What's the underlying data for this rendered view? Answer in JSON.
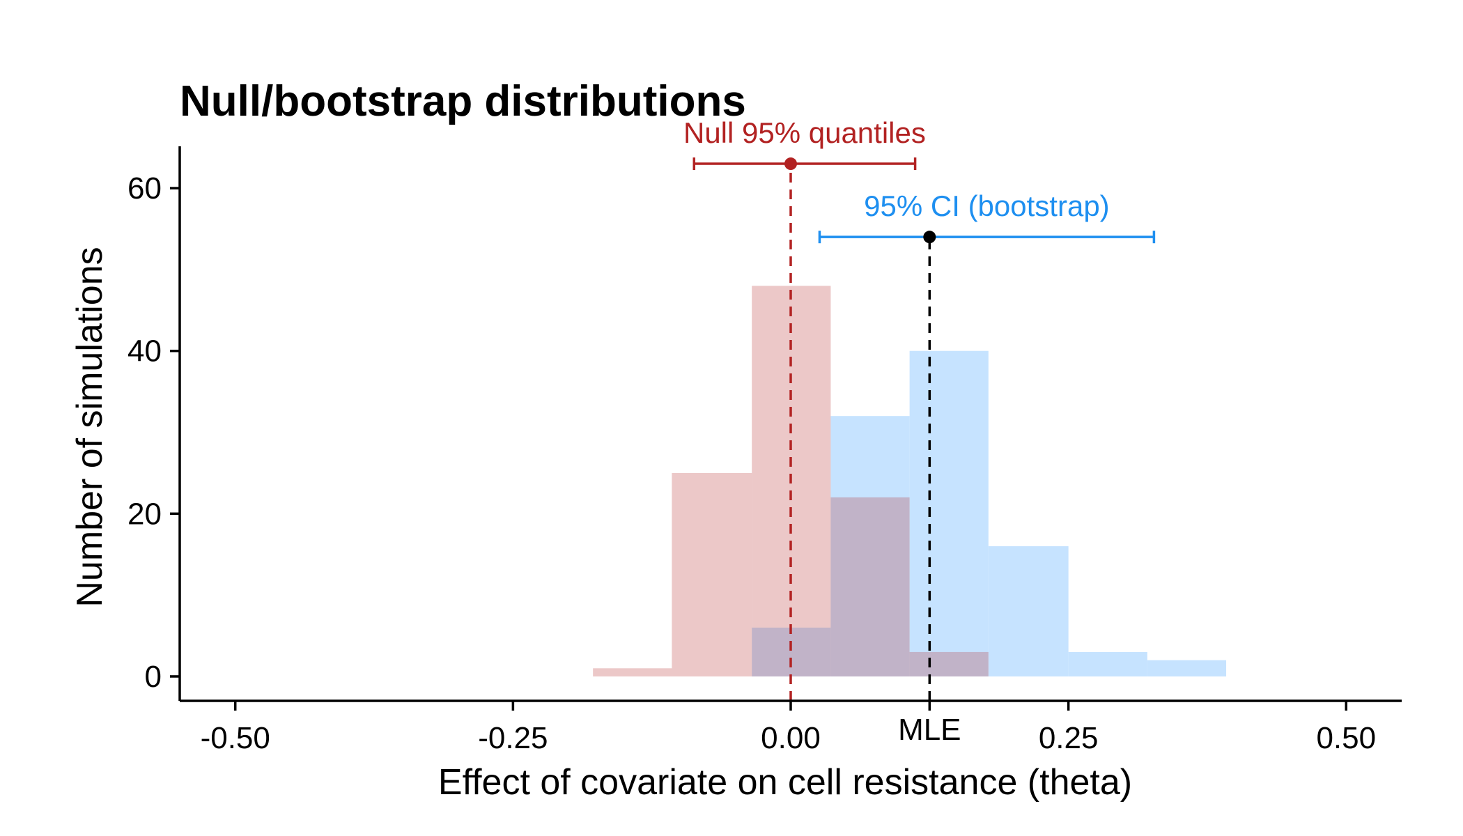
{
  "chart_data": {
    "type": "histogram",
    "title": "Null/bootstrap distributions",
    "xlabel": "Effect of covariate on cell resistance (theta)",
    "ylabel": "Number of simulations",
    "xlim": [
      -0.55,
      0.55
    ],
    "ylim": [
      -3,
      66
    ],
    "x_ticks": [
      {
        "value": -0.5,
        "label": "-0.50"
      },
      {
        "value": -0.25,
        "label": "-0.25"
      },
      {
        "value": 0.0,
        "label": "0.00"
      },
      {
        "value": 0.25,
        "label": "0.25"
      },
      {
        "value": 0.5,
        "label": "0.50"
      }
    ],
    "y_ticks": [
      {
        "value": 0,
        "label": "0"
      },
      {
        "value": 20,
        "label": "20"
      },
      {
        "value": 40,
        "label": "40"
      },
      {
        "value": 60,
        "label": "60"
      }
    ],
    "series": [
      {
        "color": "#c6e3ff",
        "opacity": 1.0,
        "bins": [
          {
            "x0": -0.035,
            "x1": 0.036,
            "count": 6
          },
          {
            "x0": 0.036,
            "x1": 0.107,
            "count": 32
          },
          {
            "x0": 0.107,
            "x1": 0.178,
            "count": 40
          },
          {
            "x0": 0.178,
            "x1": 0.25,
            "count": 16
          },
          {
            "x0": 0.25,
            "x1": 0.321,
            "count": 3
          },
          {
            "x0": 0.321,
            "x1": 0.392,
            "count": 2
          }
        ]
      },
      {
        "color": "#b2222288",
        "opacity": 0.25,
        "bins": [
          {
            "x0": -0.178,
            "x1": -0.107,
            "count": 1
          },
          {
            "x0": -0.107,
            "x1": -0.035,
            "count": 25
          },
          {
            "x0": -0.035,
            "x1": 0.036,
            "count": 48
          },
          {
            "x0": 0.036,
            "x1": 0.107,
            "count": 22
          },
          {
            "x0": 0.107,
            "x1": 0.178,
            "count": 3
          }
        ]
      }
    ],
    "annotations": [
      {
        "label": "Null 95% quantiles",
        "color": "#b22222",
        "point": 0.0,
        "low": -0.087,
        "high": 0.112,
        "y": 63
      },
      {
        "label": "95% CI (bootstrap)",
        "color": "#1e8ff0",
        "point": 0.125,
        "low": 0.026,
        "high": 0.327,
        "y": 54
      }
    ],
    "point_marker_color": "#000000",
    "vlines": [
      {
        "x": 0.0,
        "color": "#b22222"
      },
      {
        "x": 0.125,
        "color": "#000000"
      }
    ],
    "mle_label": "MLE",
    "mle_x": 0.125,
    "grid": false
  }
}
